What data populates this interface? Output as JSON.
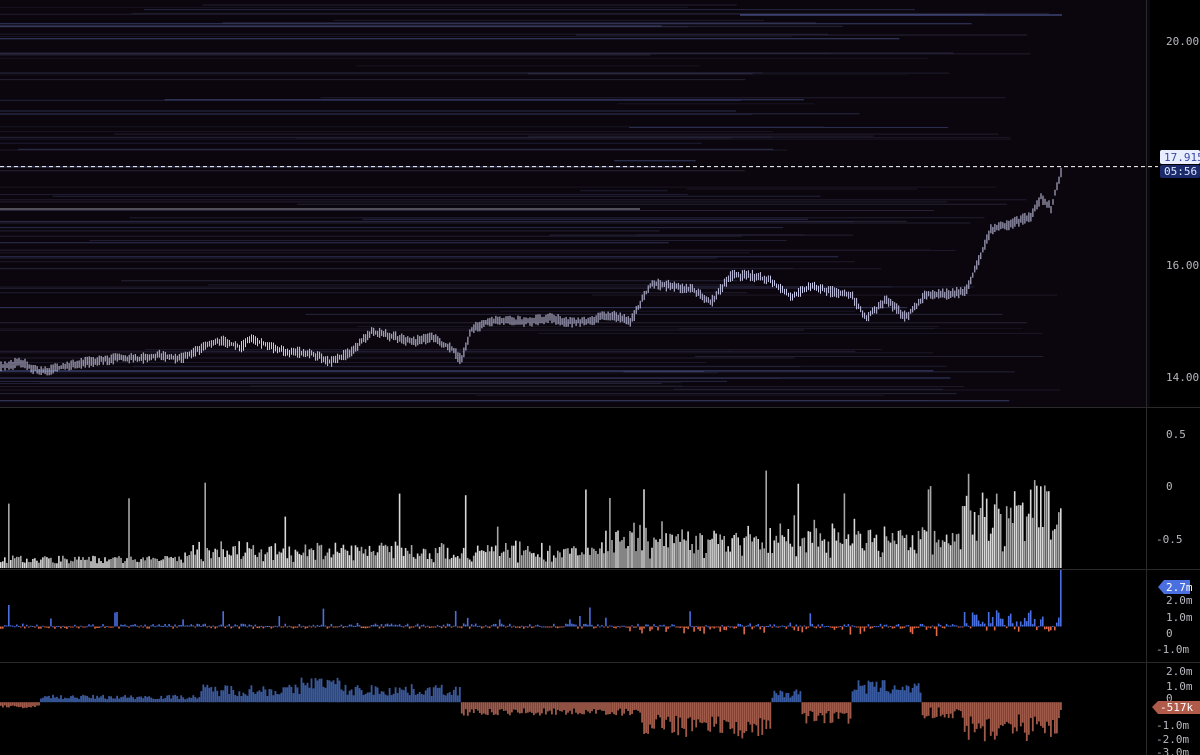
{
  "colors": {
    "background": "#000000",
    "price_pane_bg": "#0b060d",
    "candle": "#c8c8e8",
    "volume_bar": "#a6a6a6",
    "positive_bar": "#4a6fe0",
    "negative_bar": "#e06a4a",
    "cumulative_positive": "#3a5aa0",
    "cumulative_negative": "#a05a4a",
    "pane_border": "#2a2a2a",
    "heatmap_line": "#3a3a5a"
  },
  "chart_data": [
    {
      "type": "line",
      "title": "",
      "ylim": [
        13.5,
        21.0
      ],
      "y_ticks": [
        "20.00",
        "16.00",
        "14.00"
      ],
      "last_price_label": "17.915",
      "countdown_label": "05:56",
      "last_price": 17.915,
      "series_points": [
        {
          "i": 0,
          "y": 14.22
        },
        {
          "i": 20,
          "y": 14.28
        },
        {
          "i": 40,
          "y": 14.12
        },
        {
          "i": 60,
          "y": 14.2
        },
        {
          "i": 80,
          "y": 14.27
        },
        {
          "i": 100,
          "y": 14.33
        },
        {
          "i": 120,
          "y": 14.37
        },
        {
          "i": 140,
          "y": 14.36
        },
        {
          "i": 160,
          "y": 14.42
        },
        {
          "i": 180,
          "y": 14.36
        },
        {
          "i": 200,
          "y": 14.55
        },
        {
          "i": 220,
          "y": 14.7
        },
        {
          "i": 240,
          "y": 14.57
        },
        {
          "i": 250,
          "y": 14.74
        },
        {
          "i": 270,
          "y": 14.57
        },
        {
          "i": 290,
          "y": 14.48
        },
        {
          "i": 310,
          "y": 14.46
        },
        {
          "i": 330,
          "y": 14.3
        },
        {
          "i": 350,
          "y": 14.48
        },
        {
          "i": 370,
          "y": 14.85
        },
        {
          "i": 390,
          "y": 14.78
        },
        {
          "i": 410,
          "y": 14.67
        },
        {
          "i": 430,
          "y": 14.75
        },
        {
          "i": 450,
          "y": 14.56
        },
        {
          "i": 460,
          "y": 14.33
        },
        {
          "i": 470,
          "y": 14.9
        },
        {
          "i": 490,
          "y": 15.06
        },
        {
          "i": 510,
          "y": 15.05
        },
        {
          "i": 530,
          "y": 15.06
        },
        {
          "i": 550,
          "y": 15.1
        },
        {
          "i": 570,
          "y": 15.03
        },
        {
          "i": 590,
          "y": 15.07
        },
        {
          "i": 610,
          "y": 15.17
        },
        {
          "i": 630,
          "y": 15.05
        },
        {
          "i": 650,
          "y": 15.75
        },
        {
          "i": 670,
          "y": 15.7
        },
        {
          "i": 690,
          "y": 15.65
        },
        {
          "i": 710,
          "y": 15.4
        },
        {
          "i": 730,
          "y": 15.9
        },
        {
          "i": 750,
          "y": 15.9
        },
        {
          "i": 770,
          "y": 15.8
        },
        {
          "i": 790,
          "y": 15.5
        },
        {
          "i": 810,
          "y": 15.7
        },
        {
          "i": 830,
          "y": 15.6
        },
        {
          "i": 850,
          "y": 15.55
        },
        {
          "i": 865,
          "y": 15.1
        },
        {
          "i": 885,
          "y": 15.45
        },
        {
          "i": 905,
          "y": 15.12
        },
        {
          "i": 925,
          "y": 15.55
        },
        {
          "i": 945,
          "y": 15.55
        },
        {
          "i": 965,
          "y": 15.6
        },
        {
          "i": 975,
          "y": 16.05
        },
        {
          "i": 990,
          "y": 16.75
        },
        {
          "i": 1010,
          "y": 16.85
        },
        {
          "i": 1030,
          "y": 17.0
        },
        {
          "i": 1040,
          "y": 17.35
        },
        {
          "i": 1050,
          "y": 17.15
        },
        {
          "i": 1062,
          "y": 17.95
        }
      ]
    },
    {
      "type": "bar",
      "title": "",
      "ylim": [
        -0.75,
        0.75
      ],
      "y_ticks": [
        "0.5",
        "0",
        "-0.5"
      ]
    },
    {
      "type": "bar",
      "title": "",
      "ylim": [
        -1.6,
        2.6
      ],
      "y_ticks": [
        "2.0m",
        "1.0m",
        "0",
        "-1.0m"
      ],
      "last_value_label": "2.7m",
      "last_value": 2.7
    },
    {
      "type": "area",
      "title": "",
      "ylim": [
        -3.3,
        2.4
      ],
      "y_ticks": [
        "2.0m",
        "1.0m",
        "0",
        "-1.0m",
        "-2.0m",
        "-3.0m"
      ],
      "last_value_label": "-517k",
      "last_value": -0.517
    }
  ]
}
